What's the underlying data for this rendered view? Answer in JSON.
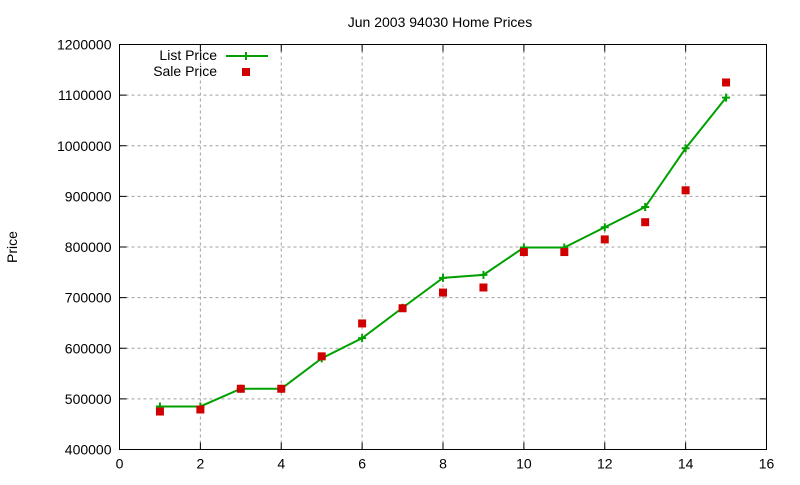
{
  "chart_data": {
    "type": "line",
    "title": "Jun 2003 94030 Home Prices",
    "xlabel": "",
    "ylabel": "Price",
    "xlim": [
      0,
      16
    ],
    "ylim": [
      400000,
      1200000
    ],
    "xticks": [
      0,
      2,
      4,
      6,
      8,
      10,
      12,
      14,
      16
    ],
    "yticks": [
      400000,
      500000,
      600000,
      700000,
      800000,
      900000,
      1000000,
      1100000,
      1200000
    ],
    "grid": true,
    "legend_position": "top-left",
    "x": [
      1,
      2,
      3,
      4,
      5,
      6,
      7,
      8,
      9,
      10,
      11,
      12,
      13,
      14,
      15
    ],
    "series": [
      {
        "name": "List Price",
        "style": "linespoints",
        "marker": "plus",
        "color": "#00a000",
        "values": [
          485000,
          485000,
          520000,
          520000,
          580000,
          620000,
          680000,
          739000,
          745000,
          799000,
          799000,
          839000,
          879000,
          995000,
          1095000
        ]
      },
      {
        "name": "Sale Price",
        "style": "points",
        "marker": "square",
        "color": "#d00000",
        "values": [
          475000,
          479000,
          520000,
          520000,
          584000,
          649000,
          679000,
          710000,
          720000,
          790000,
          790000,
          815000,
          849000,
          912000,
          1125000
        ]
      }
    ]
  }
}
